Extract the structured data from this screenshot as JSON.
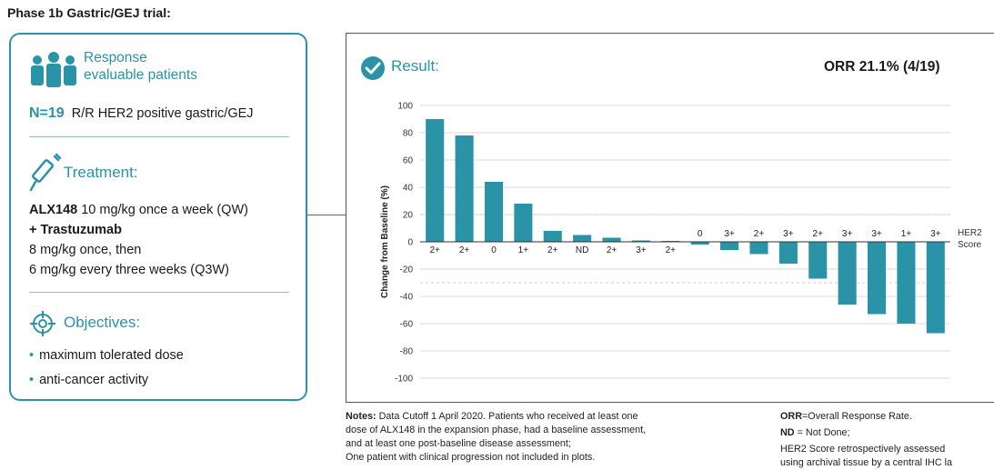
{
  "page_title": "Phase 1b Gastric/GEJ trial:",
  "card": {
    "response_line1": "Response",
    "response_line2": "evaluable patients",
    "n_value": "N=19",
    "n_desc": "R/R HER2 positive gastric/GEJ",
    "treatment_title": "Treatment:",
    "drug1_name": "ALX148",
    "drug1_dose": " 10 mg/kg once a week (QW)",
    "drug2_name": "+ Trastuzumab",
    "drug2_line1": "8 mg/kg once, then",
    "drug2_line2": "6 mg/kg  every three weeks (Q3W)",
    "objectives_title": "Objectives:",
    "objective_1": "maximum tolerated dose",
    "objective_2": "anti-cancer activity"
  },
  "result_label": "Result:",
  "orr_label": "ORR 21.1% (4/19)",
  "colors": {
    "accent": "#2a93a8",
    "bar": "#2a93a8"
  },
  "icons": [
    "people-icon",
    "syringe-icon",
    "target-icon",
    "check-circle-icon"
  ],
  "chart_data": {
    "type": "bar",
    "ylabel": "Change from Baseline (%)",
    "ylim": [
      -100,
      100
    ],
    "yticks": [
      100,
      80,
      60,
      40,
      20,
      0,
      -20,
      -40,
      -60,
      -80,
      -100
    ],
    "reference_lines": [
      20,
      -30
    ],
    "her2_label_line1": "HER2",
    "her2_label_line2": "Score",
    "bars": [
      {
        "her2": "2+",
        "value": 90
      },
      {
        "her2": "2+",
        "value": 78
      },
      {
        "her2": "0",
        "value": 44
      },
      {
        "her2": "1+",
        "value": 28
      },
      {
        "her2": "2+",
        "value": 8
      },
      {
        "her2": "ND",
        "value": 5
      },
      {
        "her2": "2+",
        "value": 3
      },
      {
        "her2": "3+",
        "value": 1
      },
      {
        "her2": "2+",
        "value": 0.5
      },
      {
        "her2": "0",
        "value": -2
      },
      {
        "her2": "3+",
        "value": -6
      },
      {
        "her2": "2+",
        "value": -9
      },
      {
        "her2": "3+",
        "value": -16
      },
      {
        "her2": "2+",
        "value": -27
      },
      {
        "her2": "3+",
        "value": -46
      },
      {
        "her2": "3+",
        "value": -53
      },
      {
        "her2": "1+",
        "value": -60
      },
      {
        "her2": "3+",
        "value": -67
      }
    ]
  },
  "notes": {
    "label": "Notes:",
    "line1": " Data Cutoff 1 April 2020. Patients who received at least one",
    "line2": "dose of ALX148 in the expansion phase, had a baseline assessment,",
    "line3": "and at least one post-baseline disease assessment;",
    "line4": "One patient with clinical progression not included in plots."
  },
  "legend_notes": {
    "orr_abbr": "ORR",
    "orr_def": "=Overall Response Rate.",
    "nd_abbr": "ND",
    "nd_def": " = Not Done;",
    "her2_line1": "HER2 Score retrospectively assessed",
    "her2_line2": "using archival tissue by a central IHC la"
  }
}
